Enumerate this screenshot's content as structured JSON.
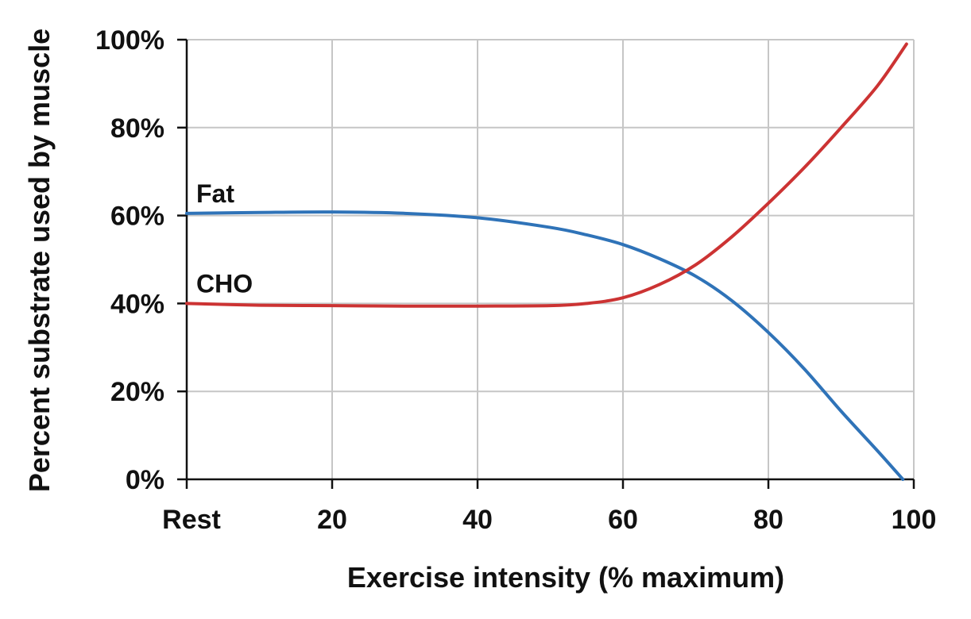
{
  "chart_data": {
    "type": "line",
    "title": "",
    "xlabel": "Exercise intensity (% maximum)",
    "ylabel": "Percent substrate used by muscle",
    "xlim": [
      0,
      100
    ],
    "ylim": [
      0,
      100
    ],
    "x_ticks": [
      0,
      20,
      40,
      60,
      80,
      100
    ],
    "x_tick_labels": [
      "Rest",
      "20",
      "40",
      "60",
      "80",
      "100"
    ],
    "y_ticks": [
      0,
      20,
      40,
      60,
      80,
      100
    ],
    "y_tick_labels": [
      "0%",
      "20%",
      "40%",
      "60%",
      "80%",
      "100%"
    ],
    "grid": true,
    "series": [
      {
        "name": "Fat",
        "color": "#2f73b8",
        "x": [
          0,
          10,
          20,
          30,
          40,
          50,
          55,
          60,
          65,
          70,
          75,
          80,
          85,
          90,
          95,
          98.5
        ],
        "y": [
          60.5,
          60.7,
          60.8,
          60.5,
          59.5,
          57.3,
          55.6,
          53.4,
          50.2,
          46.2,
          40.6,
          33.4,
          25,
          15.5,
          6.5,
          0
        ]
      },
      {
        "name": "CHO",
        "color": "#cc3333",
        "x": [
          0,
          10,
          20,
          30,
          40,
          50,
          55,
          60,
          65,
          70,
          75,
          80,
          85,
          90,
          95,
          99
        ],
        "y": [
          40,
          39.6,
          39.5,
          39.4,
          39.4,
          39.5,
          40,
          41.3,
          44.3,
          48.8,
          55.2,
          62.8,
          71,
          80,
          89.5,
          99
        ]
      }
    ]
  }
}
